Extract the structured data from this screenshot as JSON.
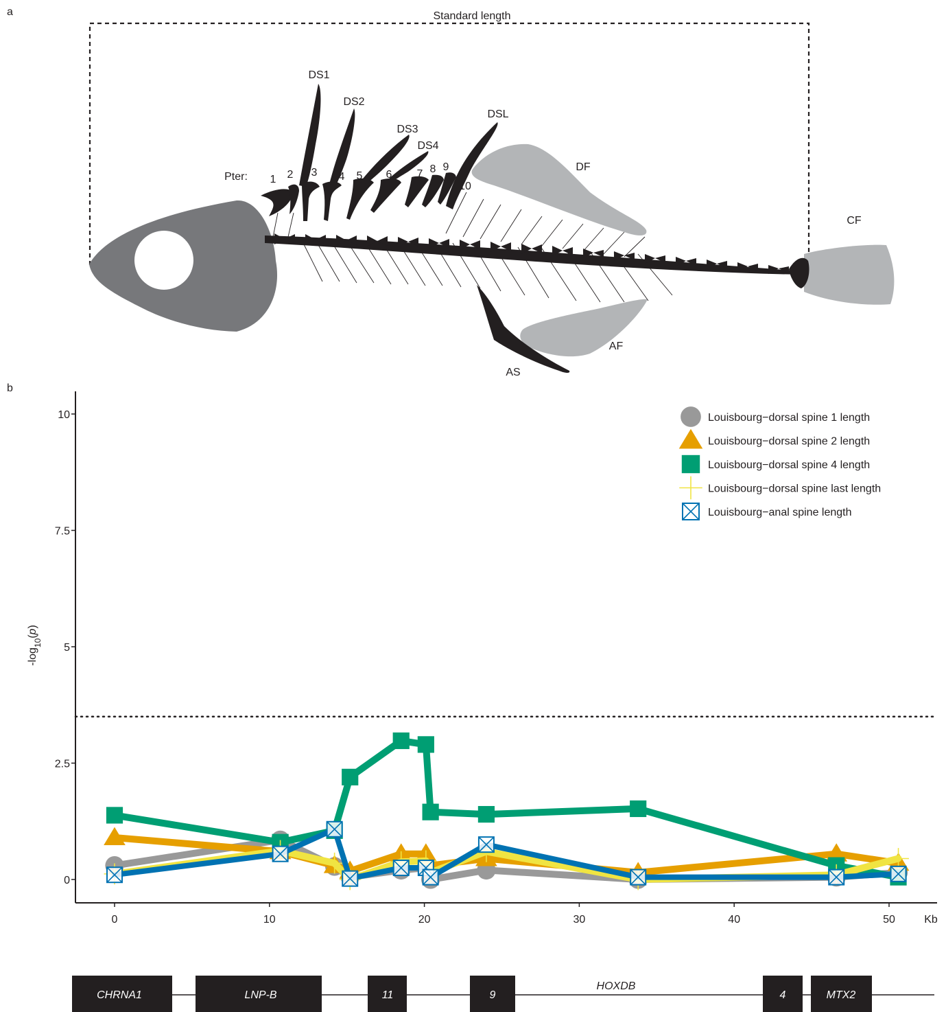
{
  "panel_a": {
    "label": "a",
    "standard_length": "Standard length",
    "pter_label": "Pter:",
    "pter_numbers": [
      "1",
      "2",
      "3",
      "4",
      "5",
      "6",
      "7",
      "8",
      "9",
      "10"
    ],
    "spines": [
      "DS1",
      "DS2",
      "DS3",
      "DS4",
      "DSL"
    ],
    "fins": {
      "df": "DF",
      "cf": "CF",
      "af": "AF",
      "as": "AS"
    }
  },
  "panel_b": {
    "label": "b"
  },
  "chart_data": {
    "type": "line",
    "xlabel": "Kb",
    "ylabel": "-log10(p)",
    "xlim": [
      -2.5,
      53
    ],
    "ylim": [
      -0.5,
      10.5
    ],
    "xticks": [
      0,
      10,
      20,
      30,
      40,
      50
    ],
    "xtick_labels": [
      "0",
      "10",
      "20",
      "30",
      "40",
      "50"
    ],
    "yticks": [
      0,
      2.5,
      5,
      7.5,
      10
    ],
    "ytick_labels": [
      "0",
      "2.5",
      "5",
      "7.5",
      "10"
    ],
    "threshold": 3.5,
    "legend_position": "top-right",
    "series": [
      {
        "name": "Louisbourg−dorsal spine 1 length",
        "color": "#999999",
        "marker": "circle",
        "x": [
          0,
          10.7,
          14.2,
          15.2,
          18.5,
          20.1,
          20.4,
          24,
          33.8,
          46.6,
          50.6
        ],
        "y": [
          0.3,
          0.85,
          0.28,
          0.05,
          0.2,
          0.25,
          0.0,
          0.2,
          0.0,
          0.05,
          0.15
        ]
      },
      {
        "name": "Louisbourg−dorsal spine 2 length",
        "color": "#E69F00",
        "marker": "triangle",
        "x": [
          0,
          10.7,
          14.2,
          15.2,
          18.5,
          20.1,
          20.4,
          24,
          33.8,
          46.6,
          50.6
        ],
        "y": [
          0.9,
          0.6,
          0.3,
          0.18,
          0.55,
          0.55,
          0.3,
          0.45,
          0.15,
          0.55,
          0.35
        ]
      },
      {
        "name": "Louisbourg−dorsal spine 4 length",
        "color": "#009E73",
        "marker": "square",
        "x": [
          0,
          10.7,
          14.2,
          15.2,
          18.5,
          20.1,
          20.4,
          24,
          33.8,
          46.6,
          50.6
        ],
        "y": [
          1.38,
          0.8,
          1.05,
          2.2,
          2.98,
          2.9,
          1.45,
          1.4,
          1.52,
          0.3,
          0.05
        ]
      },
      {
        "name": "Louisbourg−dorsal spine last length",
        "color": "#F0E442",
        "marker": "plus",
        "x": [
          0,
          10.7,
          14.2,
          15.2,
          18.5,
          20.1,
          20.4,
          24,
          33.8,
          46.6,
          50.6
        ],
        "y": [
          0.12,
          0.62,
          0.35,
          0.0,
          0.38,
          0.4,
          0.15,
          0.6,
          0.0,
          0.1,
          0.45
        ]
      },
      {
        "name": "Louisbourg−anal spine length",
        "color": "#0072B2",
        "marker": "boxx",
        "x": [
          0,
          10.7,
          14.2,
          15.2,
          18.5,
          20.1,
          20.4,
          24,
          33.8,
          46.6,
          50.6
        ],
        "y": [
          0.1,
          0.55,
          1.08,
          0.02,
          0.25,
          0.25,
          0.05,
          0.75,
          0.05,
          0.05,
          0.12
        ]
      }
    ]
  },
  "gene_track": {
    "genes": [
      {
        "name": "CHRNA1",
        "style": "box"
      },
      {
        "name": "LNP-B",
        "style": "box"
      },
      {
        "name": "11",
        "style": "box"
      },
      {
        "name": "9",
        "style": "box"
      },
      {
        "name": "HOXDB",
        "style": "text"
      },
      {
        "name": "4",
        "style": "box"
      },
      {
        "name": "MTX2",
        "style": "box"
      }
    ]
  }
}
